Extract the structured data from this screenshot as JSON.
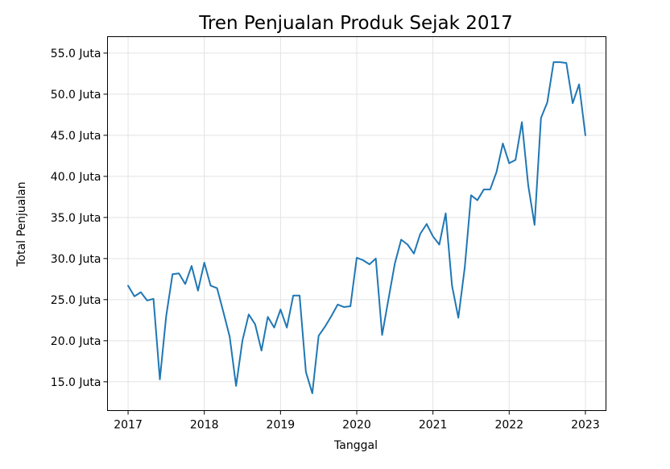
{
  "chart_data": {
    "type": "line",
    "title": "Tren Penjualan Produk Sejak 2017",
    "xlabel": "Tanggal",
    "ylabel": "Total Penjualan",
    "xlim": [
      2016.73,
      2023.27
    ],
    "ylim": [
      11.5,
      57.0
    ],
    "y_ticks": [
      15,
      20,
      25,
      30,
      35,
      40,
      45,
      50,
      55
    ],
    "y_tick_labels": [
      "15.0 Juta",
      "20.0 Juta",
      "25.0 Juta",
      "30.0 Juta",
      "35.0 Juta",
      "40.0 Juta",
      "45.0 Juta",
      "50.0 Juta",
      "55.0 Juta"
    ],
    "x_ticks": [
      2017,
      2018,
      2019,
      2020,
      2021,
      2022,
      2023
    ],
    "x_tick_labels": [
      "2017",
      "2018",
      "2019",
      "2020",
      "2021",
      "2022",
      "2023"
    ],
    "grid": true,
    "series": [
      {
        "name": "Total Penjualan",
        "color": "#1f77b4",
        "x": [
          2017.0,
          2017.083,
          2017.167,
          2017.25,
          2017.333,
          2017.417,
          2017.5,
          2017.583,
          2017.667,
          2017.75,
          2017.833,
          2017.917,
          2018.0,
          2018.083,
          2018.167,
          2018.25,
          2018.333,
          2018.417,
          2018.5,
          2018.583,
          2018.667,
          2018.75,
          2018.833,
          2018.917,
          2019.0,
          2019.083,
          2019.167,
          2019.25,
          2019.333,
          2019.417,
          2019.5,
          2019.583,
          2019.667,
          2019.75,
          2019.833,
          2019.917,
          2020.0,
          2020.083,
          2020.167,
          2020.25,
          2020.333,
          2020.417,
          2020.5,
          2020.583,
          2020.667,
          2020.75,
          2020.833,
          2020.917,
          2021.0,
          2021.083,
          2021.167,
          2021.25,
          2021.333,
          2021.417,
          2021.5,
          2021.583,
          2021.667,
          2021.75,
          2021.833,
          2021.917,
          2022.0,
          2022.083,
          2022.167,
          2022.25,
          2022.333,
          2022.417,
          2022.5,
          2022.583,
          2022.667,
          2022.75,
          2022.833,
          2022.917,
          2023.0
        ],
        "values": [
          26.7,
          25.4,
          25.9,
          24.9,
          25.1,
          15.3,
          23.0,
          28.1,
          28.2,
          26.9,
          29.1,
          26.1,
          29.5,
          26.7,
          26.4,
          23.5,
          20.5,
          14.5,
          20.0,
          23.2,
          22.0,
          18.8,
          22.9,
          21.6,
          23.8,
          21.6,
          25.5,
          25.5,
          16.2,
          13.6,
          20.6,
          21.7,
          23.0,
          24.4,
          24.1,
          24.2,
          30.1,
          29.8,
          29.3,
          30.0,
          20.7,
          25.1,
          29.4,
          32.3,
          31.7,
          30.6,
          33.0,
          34.2,
          32.7,
          31.7,
          35.5,
          26.7,
          22.8,
          28.9,
          37.7,
          37.1,
          38.4,
          38.4,
          40.5,
          44.0,
          41.6,
          42.0,
          46.6,
          38.9,
          34.1,
          47.1,
          49.0,
          53.9,
          53.9,
          53.8,
          48.9,
          51.2,
          45.0
        ]
      }
    ]
  }
}
